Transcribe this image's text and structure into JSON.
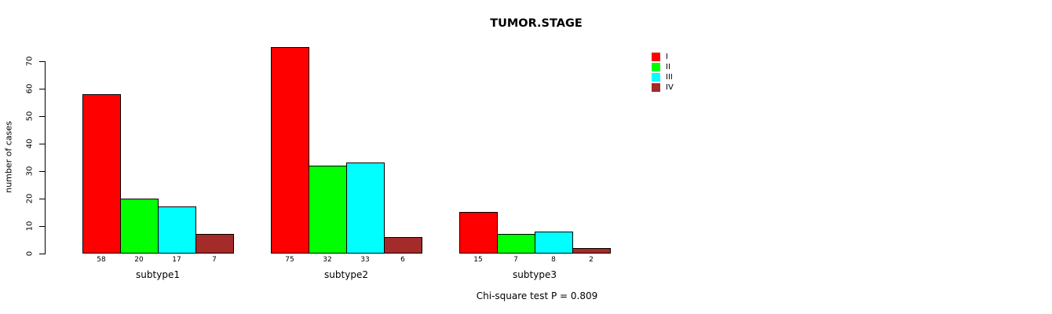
{
  "chart_data": {
    "type": "bar",
    "title": "TUMOR.STAGE",
    "ylabel": "number of cases",
    "xlabel": "",
    "ylim": [
      0,
      75
    ],
    "yticks": [
      0,
      10,
      20,
      30,
      40,
      50,
      60,
      70
    ],
    "grid": false,
    "legend_position": "top-right",
    "categories": [
      "subtype1",
      "subtype2",
      "subtype3"
    ],
    "series": [
      {
        "name": "I",
        "color": "#FF0000",
        "values": [
          58,
          75,
          15
        ]
      },
      {
        "name": "II",
        "color": "#00FF00",
        "values": [
          20,
          32,
          7
        ]
      },
      {
        "name": "III",
        "color": "#00FFFF",
        "values": [
          17,
          33,
          8
        ]
      },
      {
        "name": "IV",
        "color": "#A52A2A",
        "values": [
          7,
          6,
          2
        ]
      }
    ],
    "bar_value_labels_shown": true,
    "footnote": "Chi-square test P = 0.809"
  }
}
